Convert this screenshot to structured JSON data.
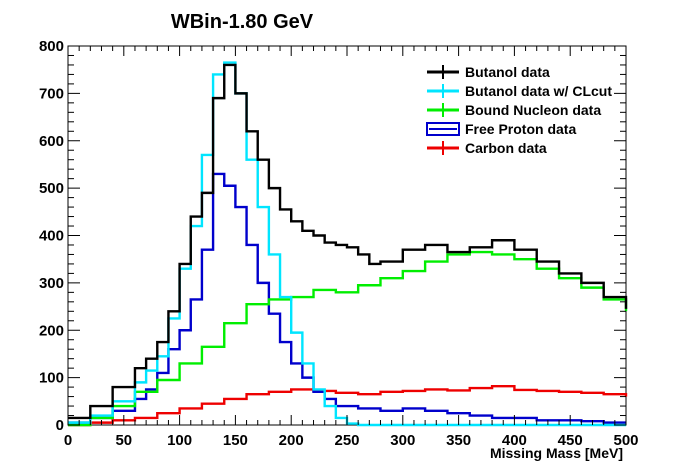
{
  "chart_data": {
    "type": "line",
    "title": "WBin-1.80 GeV",
    "xlabel": "Missing Mass [MeV]",
    "ylabel": "",
    "xlim": [
      0,
      500
    ],
    "ylim": [
      0,
      800
    ],
    "x_ticks": [
      0,
      50,
      100,
      150,
      200,
      250,
      300,
      350,
      400,
      450,
      500
    ],
    "y_ticks": [
      0,
      100,
      200,
      300,
      400,
      500,
      600,
      700,
      800
    ],
    "grid": false,
    "legend_position": "top-right",
    "step": true,
    "series": [
      {
        "name": "Butanol data",
        "color": "#000000",
        "x": [
          0,
          20,
          40,
          60,
          70,
          80,
          90,
          100,
          110,
          120,
          130,
          140,
          150,
          160,
          170,
          180,
          190,
          200,
          210,
          220,
          230,
          240,
          250,
          260,
          270,
          280,
          300,
          320,
          340,
          360,
          380,
          400,
          420,
          440,
          460,
          480,
          500
        ],
        "y": [
          15,
          40,
          80,
          120,
          140,
          175,
          240,
          340,
          440,
          490,
          690,
          760,
          700,
          620,
          560,
          500,
          455,
          430,
          410,
          400,
          385,
          380,
          375,
          360,
          340,
          345,
          370,
          380,
          365,
          375,
          390,
          370,
          345,
          320,
          300,
          270,
          245
        ]
      },
      {
        "name": "Butanol data w/ CLcut",
        "color": "#00e5ff",
        "x": [
          0,
          20,
          40,
          60,
          70,
          80,
          90,
          100,
          110,
          120,
          130,
          140,
          150,
          160,
          170,
          180,
          190,
          200,
          210,
          220,
          230,
          240,
          250,
          260,
          500
        ],
        "y": [
          5,
          20,
          50,
          90,
          115,
          145,
          225,
          330,
          420,
          570,
          740,
          765,
          700,
          560,
          460,
          360,
          270,
          195,
          130,
          75,
          40,
          15,
          3,
          0,
          0
        ]
      },
      {
        "name": "Bound Nucleon data",
        "color": "#00ee00",
        "x": [
          0,
          20,
          40,
          60,
          80,
          100,
          120,
          140,
          160,
          180,
          200,
          220,
          240,
          260,
          280,
          300,
          320,
          340,
          360,
          380,
          400,
          420,
          440,
          460,
          480,
          500
        ],
        "y": [
          0,
          15,
          40,
          70,
          95,
          130,
          165,
          215,
          255,
          265,
          270,
          285,
          280,
          295,
          310,
          325,
          345,
          360,
          365,
          360,
          350,
          330,
          310,
          290,
          265,
          240
        ]
      },
      {
        "name": "Free Proton data",
        "color": "#0000cc",
        "x": [
          0,
          20,
          40,
          60,
          70,
          80,
          90,
          100,
          110,
          120,
          130,
          140,
          150,
          160,
          170,
          180,
          190,
          200,
          210,
          220,
          230,
          240,
          260,
          280,
          300,
          320,
          340,
          360,
          380,
          400,
          420,
          440,
          460,
          480,
          500
        ],
        "y": [
          5,
          15,
          30,
          55,
          75,
          110,
          160,
          200,
          265,
          370,
          530,
          505,
          460,
          380,
          300,
          235,
          175,
          130,
          100,
          70,
          55,
          40,
          35,
          30,
          35,
          30,
          25,
          20,
          15,
          15,
          10,
          10,
          8,
          5,
          5
        ]
      },
      {
        "name": "Carbon data",
        "color": "#ee0000",
        "x": [
          0,
          20,
          40,
          60,
          80,
          100,
          120,
          140,
          160,
          180,
          200,
          220,
          240,
          260,
          280,
          300,
          320,
          340,
          360,
          380,
          400,
          420,
          440,
          460,
          480,
          500
        ],
        "y": [
          0,
          5,
          10,
          15,
          25,
          35,
          45,
          55,
          65,
          70,
          75,
          72,
          68,
          65,
          70,
          72,
          75,
          73,
          78,
          82,
          74,
          72,
          70,
          68,
          65,
          60
        ]
      }
    ]
  }
}
